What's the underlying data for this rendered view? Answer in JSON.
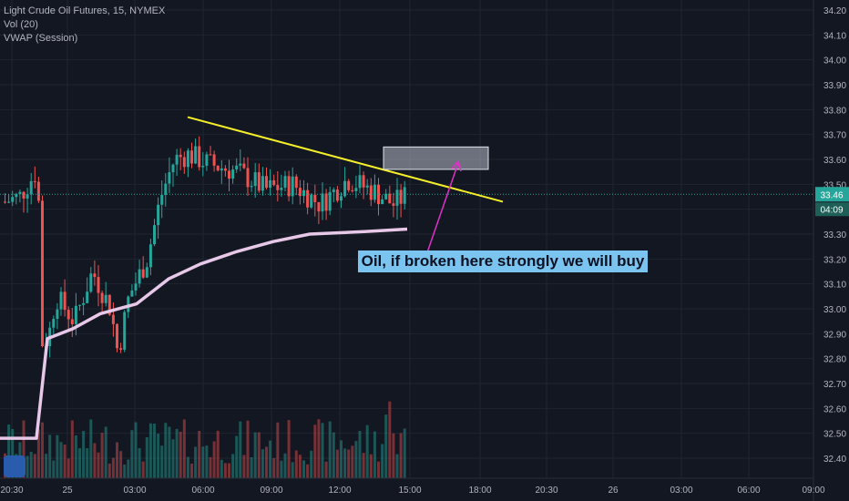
{
  "legend": {
    "symbol": "Light Crude Oil Futures, 15, NYMEX",
    "volume": "Vol (20)",
    "vwap": "VWAP (Session)"
  },
  "annotation": "Oil, if broken here strongly we will buy",
  "price_badges": {
    "last": "33.46",
    "countdown": "04:09"
  },
  "colors": {
    "background": "#131722",
    "up": "#26a69a",
    "down": "#ef5350",
    "trendline": "#f5ee2a",
    "vwap": "#e8c8e8",
    "arrow": "#e030c8",
    "annotation_bg": "#7cc4f0"
  },
  "chart_data": {
    "type": "candlestick",
    "y_ticks": [
      "34.20",
      "34.10",
      "34.00",
      "33.90",
      "33.80",
      "33.70",
      "33.60",
      "33.50",
      "33.40",
      "33.30",
      "33.20",
      "33.10",
      "33.00",
      "32.90",
      "32.80",
      "32.70",
      "32.60",
      "32.50",
      "32.40"
    ],
    "x_ticks": [
      "20:30",
      "25",
      "03:00",
      "06:00",
      "09:00",
      "12:00",
      "15:00",
      "18:00",
      "20:30",
      "26",
      "03:00",
      "06:00",
      "09:00"
    ],
    "ylim": [
      32.35,
      34.24
    ],
    "last_price": 33.46,
    "trendline": {
      "start": 33.77,
      "end": 33.43
    },
    "target_box": {
      "low": 33.56,
      "high": 33.65
    }
  }
}
